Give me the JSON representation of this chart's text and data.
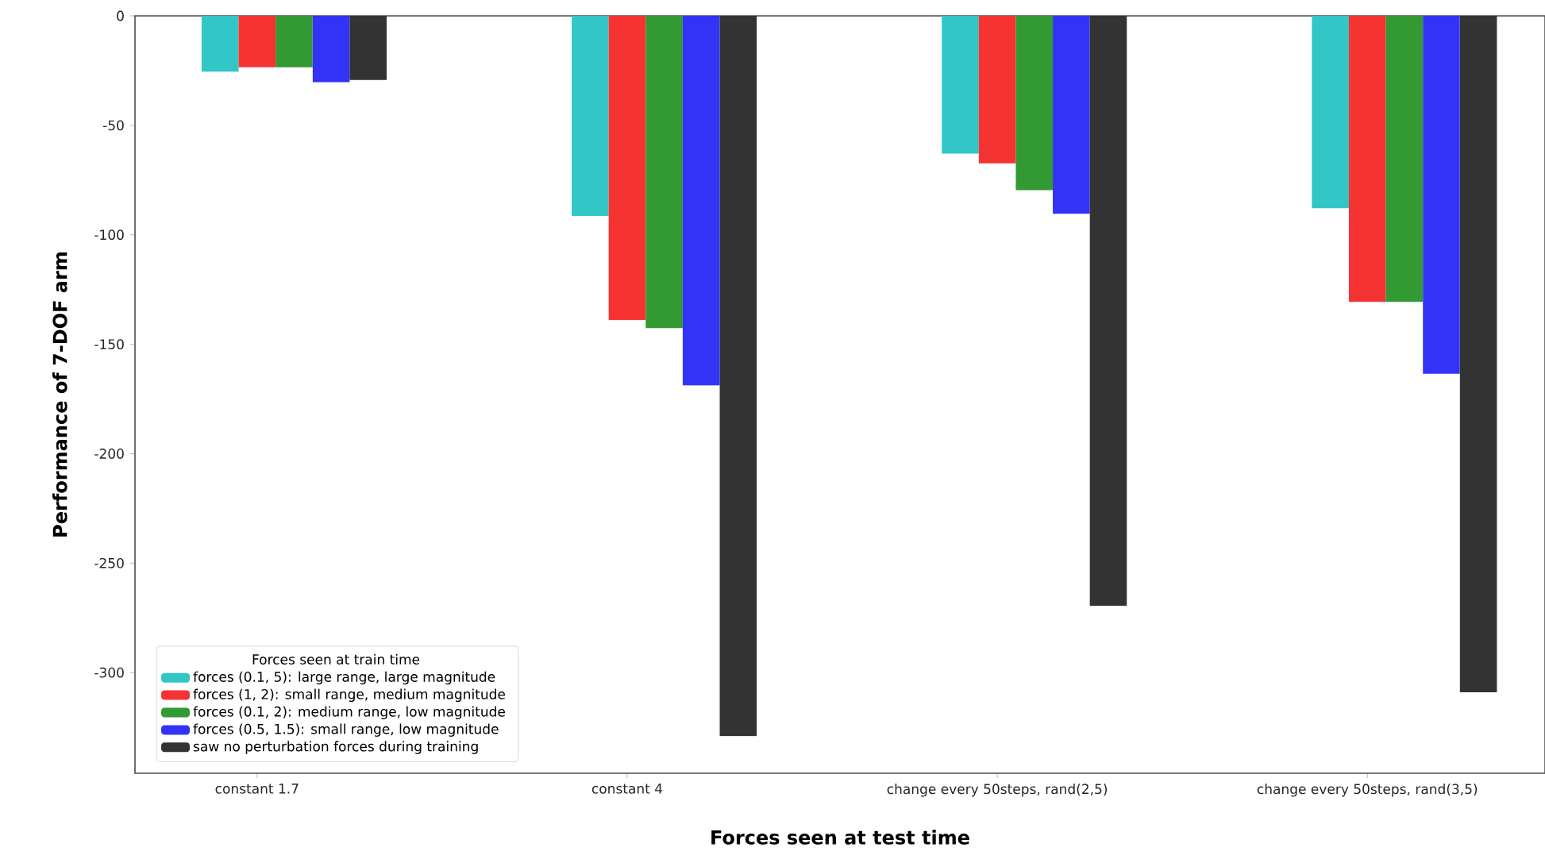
{
  "chart_data": {
    "type": "bar",
    "xlabel": "Forces seen at test time",
    "ylabel": "Performance of 7-DOF arm",
    "legend_title": "Forces seen at train time",
    "categories": [
      "constant 1.7",
      "constant 4",
      "change every 50steps, rand(2,5)",
      "change every 50steps, rand(3,5)"
    ],
    "series": [
      {
        "name": "forces (0.1, 5): large range, large magnitude",
        "color": "#33c6c6",
        "values": [
          -25.5,
          -91.4,
          -62.9,
          -87.9
        ]
      },
      {
        "name": "forces (1, 2): small range, medium magnitude",
        "color": "#f53333",
        "values": [
          -23.5,
          -139,
          -67.4,
          -130.7
        ]
      },
      {
        "name": "forces (0.1, 2): medium range, low magnitude",
        "color": "#339933",
        "values": [
          -23.5,
          -142.7,
          -79.6,
          -130.7
        ]
      },
      {
        "name": "forces (0.5, 1.5): small range, low magnitude",
        "color": "#3333f5",
        "values": [
          -30.3,
          -168.8,
          -90.4,
          -163.5
        ]
      },
      {
        "name": "saw no perturbation forces during training",
        "color": "#333333",
        "values": [
          -29.3,
          -329,
          -269.5,
          -309
        ]
      }
    ],
    "ylim": [
      -346,
      0
    ],
    "yticks": [
      0,
      -50,
      -100,
      -150,
      -200,
      -250,
      -300
    ],
    "legend": "bottom left"
  }
}
